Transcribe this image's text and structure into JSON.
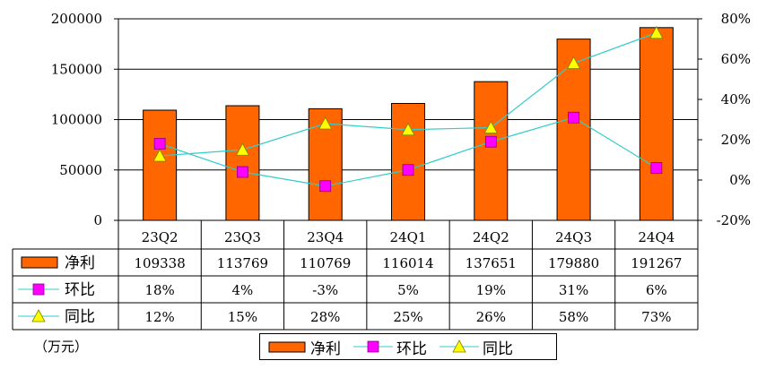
{
  "chart_data": {
    "type": "bar+line",
    "categories": [
      "23Q2",
      "23Q3",
      "23Q4",
      "24Q1",
      "24Q2",
      "24Q3",
      "24Q4"
    ],
    "series": [
      {
        "name": "净利",
        "kind": "bar",
        "axis": "left",
        "values": [
          109338,
          113769,
          110769,
          116014,
          137651,
          179880,
          191267
        ],
        "labels": [
          "109338",
          "113769",
          "110769",
          "116014",
          "137651",
          "179880",
          "191267"
        ]
      },
      {
        "name": "环比",
        "kind": "line",
        "axis": "right",
        "values": [
          18,
          4,
          -3,
          5,
          19,
          31,
          6
        ],
        "labels": [
          "18%",
          "4%",
          "-3%",
          "5%",
          "19%",
          "31%",
          "6%"
        ]
      },
      {
        "name": "同比",
        "kind": "line",
        "axis": "right",
        "values": [
          12,
          15,
          28,
          25,
          26,
          58,
          73
        ],
        "labels": [
          "12%",
          "15%",
          "28%",
          "25%",
          "26%",
          "58%",
          "73%"
        ]
      }
    ],
    "y_left": {
      "min": 0,
      "max": 200000,
      "ticks": [
        "200000",
        "150000",
        "100000",
        "50000",
        "0"
      ]
    },
    "y_right": {
      "min": -20,
      "max": 80,
      "ticks": [
        "80%",
        "60%",
        "40%",
        "20%",
        "0%",
        "-20%"
      ]
    },
    "unit_label": "（万元）",
    "legend": [
      "净利",
      "环比",
      "同比"
    ],
    "legend_position": "bottom-center",
    "grid": "horizontal"
  },
  "colors": {
    "bar": "#FF6600",
    "bar_border": "#000000",
    "line": "#33CCCC",
    "ring_marker": "#FF00FF",
    "yoy_marker": "#FFFF00"
  }
}
